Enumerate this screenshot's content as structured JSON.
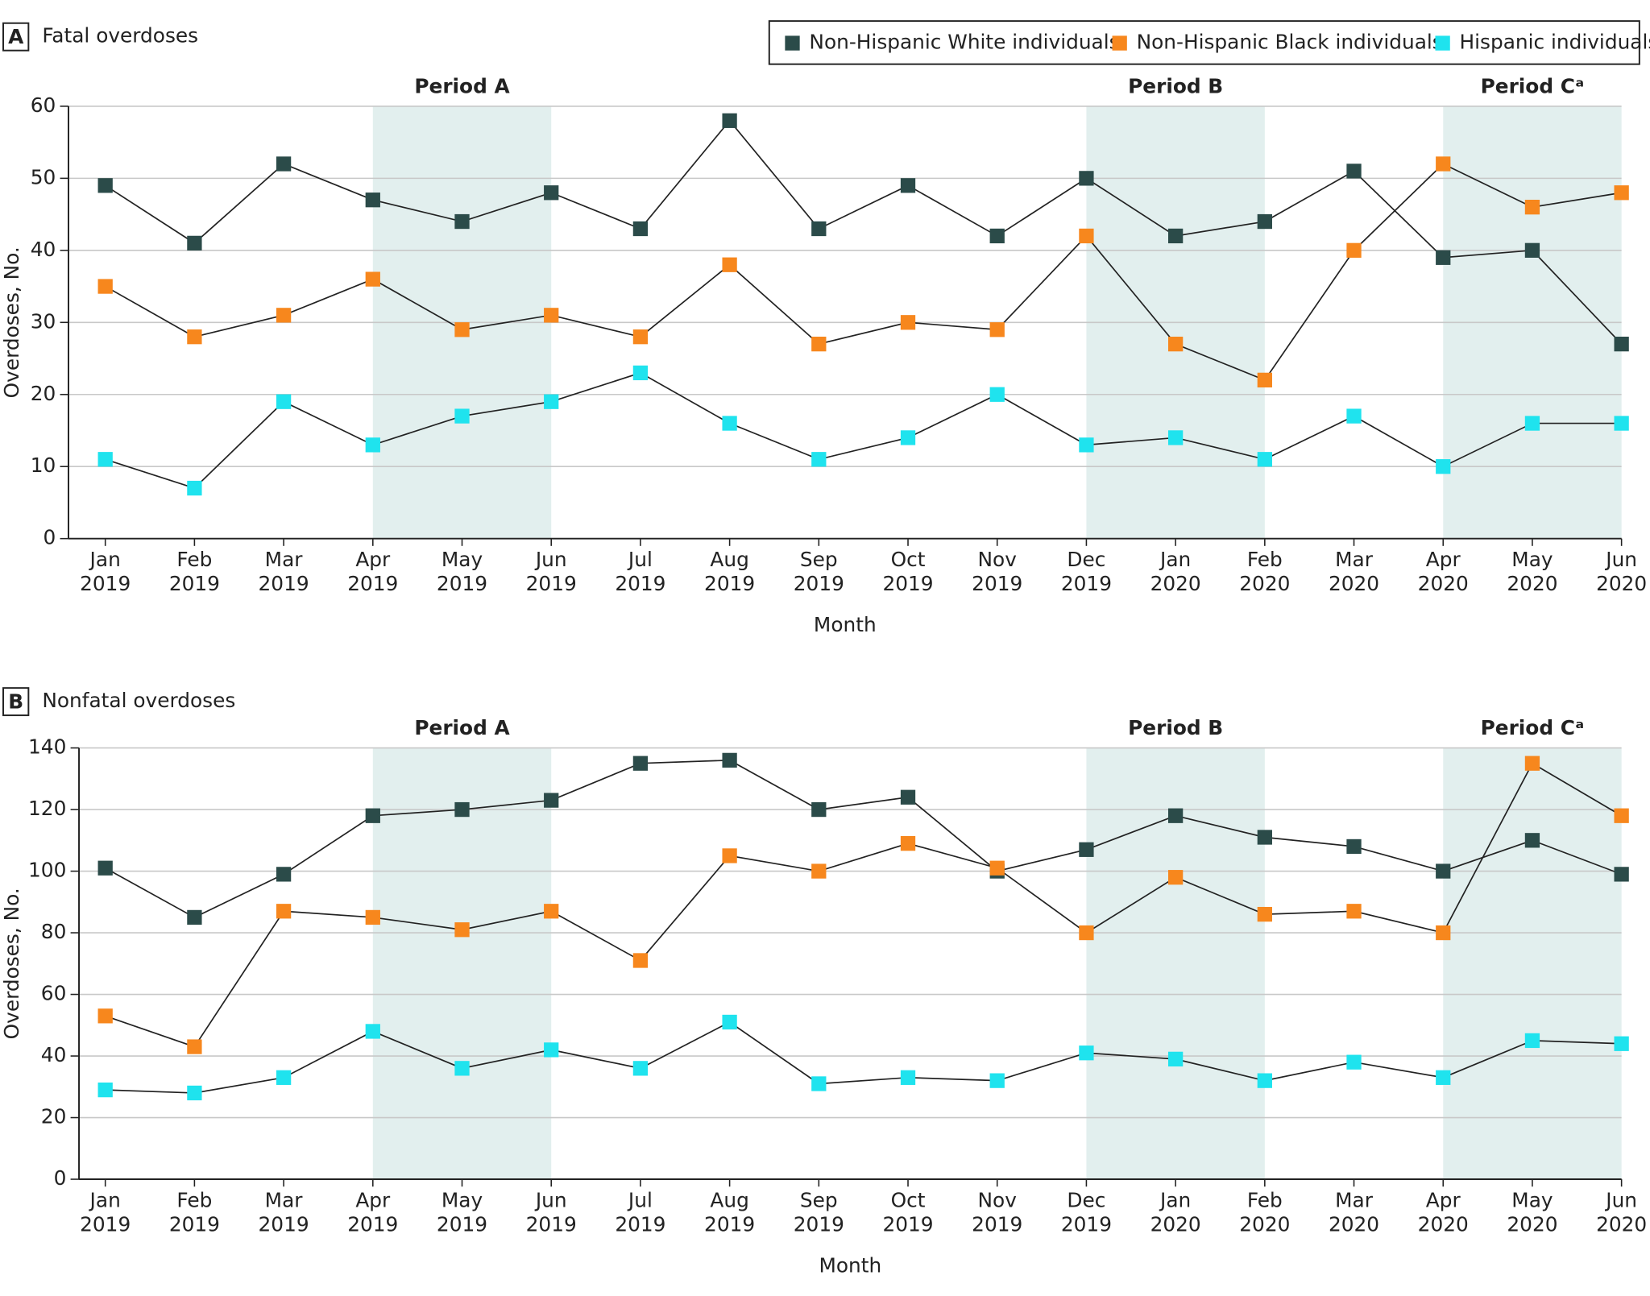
{
  "chart_data": [
    {
      "type": "line",
      "panel": "A",
      "title": "Fatal overdoses",
      "ylabel": "Overdoses, No.",
      "xlabel": "Month",
      "categories": [
        [
          "Jan",
          "2019"
        ],
        [
          "Feb",
          "2019"
        ],
        [
          "Mar",
          "2019"
        ],
        [
          "Apr",
          "2019"
        ],
        [
          "May",
          "2019"
        ],
        [
          "Jun",
          "2019"
        ],
        [
          "Jul",
          "2019"
        ],
        [
          "Aug",
          "2019"
        ],
        [
          "Sep",
          "2019"
        ],
        [
          "Oct",
          "2019"
        ],
        [
          "Nov",
          "2019"
        ],
        [
          "Dec",
          "2019"
        ],
        [
          "Jan",
          "2020"
        ],
        [
          "Feb",
          "2020"
        ],
        [
          "Mar",
          "2020"
        ],
        [
          "Apr",
          "2020"
        ],
        [
          "May",
          "2020"
        ],
        [
          "Jun",
          "2020"
        ]
      ],
      "ylim": [
        0,
        60
      ],
      "yticks": [
        0,
        10,
        20,
        30,
        40,
        50,
        60
      ],
      "grid": true,
      "legend": "top-right",
      "periods": [
        {
          "label": "Period A",
          "categories": [
            3,
            5
          ]
        },
        {
          "label": "Period B",
          "categories": [
            11,
            13
          ]
        },
        {
          "label": "Period Cᵃ",
          "categories": [
            15,
            17
          ]
        }
      ],
      "series": [
        {
          "name": "Non-Hispanic White individuals",
          "color": "#2b4b49",
          "values": [
            49,
            41,
            52,
            47,
            44,
            48,
            43,
            58,
            43,
            49,
            42,
            50,
            42,
            44,
            51,
            39,
            40,
            27
          ]
        },
        {
          "name": "Non-Hispanic Black individuals",
          "color": "#f7871d",
          "values": [
            35,
            28,
            31,
            36,
            29,
            31,
            28,
            38,
            27,
            30,
            29,
            42,
            27,
            22,
            40,
            52,
            46,
            48
          ]
        },
        {
          "name": "Hispanic individuals",
          "color": "#1fe3ee",
          "values": [
            11,
            7,
            19,
            13,
            17,
            19,
            23,
            16,
            11,
            14,
            20,
            13,
            14,
            11,
            17,
            10,
            16,
            16
          ]
        }
      ]
    },
    {
      "type": "line",
      "panel": "B",
      "title": "Nonfatal overdoses",
      "ylabel": "Overdoses, No.",
      "xlabel": "Month",
      "categories": [
        [
          "Jan",
          "2019"
        ],
        [
          "Feb",
          "2019"
        ],
        [
          "Mar",
          "2019"
        ],
        [
          "Apr",
          "2019"
        ],
        [
          "May",
          "2019"
        ],
        [
          "Jun",
          "2019"
        ],
        [
          "Jul",
          "2019"
        ],
        [
          "Aug",
          "2019"
        ],
        [
          "Sep",
          "2019"
        ],
        [
          "Oct",
          "2019"
        ],
        [
          "Nov",
          "2019"
        ],
        [
          "Dec",
          "2019"
        ],
        [
          "Jan",
          "2020"
        ],
        [
          "Feb",
          "2020"
        ],
        [
          "Mar",
          "2020"
        ],
        [
          "Apr",
          "2020"
        ],
        [
          "May",
          "2020"
        ],
        [
          "Jun",
          "2020"
        ]
      ],
      "ylim": [
        0,
        140
      ],
      "yticks": [
        0,
        20,
        40,
        60,
        80,
        100,
        120,
        140
      ],
      "grid": true,
      "periods": [
        {
          "label": "Period A",
          "categories": [
            3,
            5
          ]
        },
        {
          "label": "Period B",
          "categories": [
            11,
            13
          ]
        },
        {
          "label": "Period Cᵃ",
          "categories": [
            15,
            17
          ]
        }
      ],
      "series": [
        {
          "name": "Non-Hispanic White individuals",
          "color": "#2b4b49",
          "values": [
            101,
            85,
            99,
            118,
            120,
            123,
            135,
            136,
            120,
            124,
            100,
            107,
            118,
            111,
            108,
            100,
            110,
            99
          ]
        },
        {
          "name": "Non-Hispanic Black individuals",
          "color": "#f7871d",
          "values": [
            53,
            43,
            87,
            85,
            81,
            87,
            71,
            105,
            100,
            109,
            101,
            80,
            98,
            86,
            87,
            80,
            135,
            118
          ]
        },
        {
          "name": "Hispanic individuals",
          "color": "#1fe3ee",
          "values": [
            29,
            28,
            33,
            48,
            36,
            42,
            36,
            51,
            31,
            33,
            32,
            41,
            39,
            32,
            38,
            33,
            45,
            44
          ]
        }
      ]
    }
  ]
}
